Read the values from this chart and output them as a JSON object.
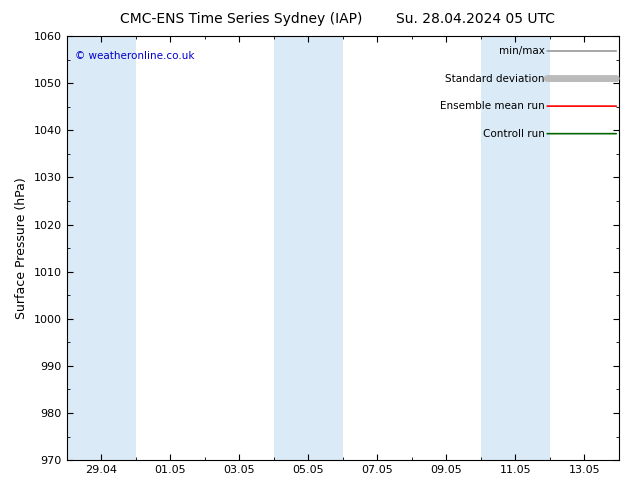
{
  "title_left": "CMC-ENS Time Series Sydney (IAP)",
  "title_right": "Su. 28.04.2024 05 UTC",
  "ylabel": "Surface Pressure (hPa)",
  "ylim": [
    970,
    1060
  ],
  "yticks": [
    970,
    980,
    990,
    1000,
    1010,
    1020,
    1030,
    1040,
    1050,
    1060
  ],
  "xtick_labels": [
    "29.04",
    "01.05",
    "03.05",
    "05.05",
    "07.05",
    "09.05",
    "11.05",
    "13.05"
  ],
  "xtick_positions_days": [
    1,
    3,
    5,
    7,
    9,
    11,
    13,
    15
  ],
  "xlim": [
    0,
    16
  ],
  "shaded_bands": [
    {
      "start_day": 0,
      "end_day": 2
    },
    {
      "start_day": 6,
      "end_day": 8
    },
    {
      "start_day": 12,
      "end_day": 14
    }
  ],
  "shaded_color": "#daeaf6",
  "background_color": "#ffffff",
  "watermark": "© weatheronline.co.uk",
  "watermark_color": "#0000cc",
  "legend_items": [
    {
      "label": "min/max",
      "color": "#999999",
      "lw": 1.2
    },
    {
      "label": "Standard deviation",
      "color": "#bbbbbb",
      "lw": 5
    },
    {
      "label": "Ensemble mean run",
      "color": "#ff0000",
      "lw": 1.2
    },
    {
      "label": "Controll run",
      "color": "#006600",
      "lw": 1.2
    }
  ],
  "title_fontsize": 10,
  "ylabel_fontsize": 9,
  "tick_fontsize": 8,
  "legend_fontsize": 7.5
}
